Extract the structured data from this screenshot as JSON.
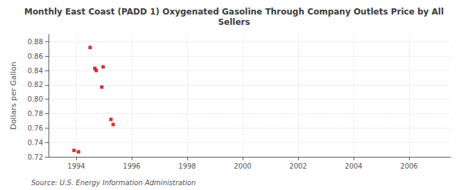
{
  "chart_data": {
    "type": "scatter",
    "title": "Monthly East Coast (PADD 1) Oxygenated Gasoline Through Company Outlets Price by All\nSellers",
    "ylabel": "Dollars per Gallon",
    "annotation": "Source: U.S. Energy Information Administration",
    "x": [
      1993.92,
      1994.08,
      1994.5,
      1994.67,
      1994.72,
      1994.92,
      1994.97,
      1995.25,
      1995.33
    ],
    "values": [
      0.729,
      0.727,
      0.872,
      0.843,
      0.84,
      0.817,
      0.845,
      0.772,
      0.765
    ],
    "color": "#cc0000",
    "marker": "square",
    "xlim": [
      1993.0,
      2007.5
    ],
    "ylim": [
      0.72,
      0.89
    ],
    "xticks": [
      1994,
      1996,
      1998,
      2000,
      2002,
      2004,
      2006
    ],
    "yticks": [
      0.72,
      0.74,
      0.76,
      0.78,
      {
        "value": 0.8,
        "label": "0.80"
      },
      0.82,
      0.84,
      0.86,
      0.88
    ],
    "grid": true
  }
}
